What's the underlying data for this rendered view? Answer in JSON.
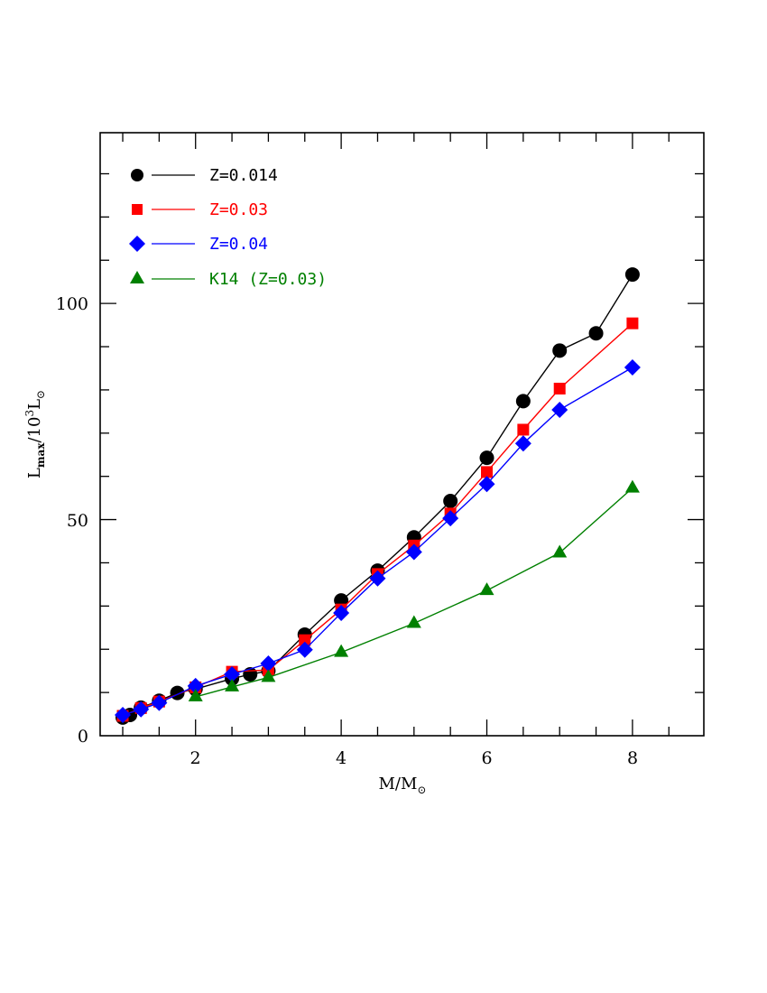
{
  "chart_data": {
    "type": "line",
    "title": "",
    "xlabel": "M/M⊙",
    "ylabel": "L_max/10^3 L⊙",
    "xlabel_parts": {
      "main": "M/M",
      "sub": "⊙"
    },
    "ylabel_parts": {
      "main": "L",
      "sub": "max",
      "mid": "/10",
      "sup": "3",
      "main2": "L",
      "sub2": "⊙"
    },
    "xlim": [
      0.69,
      8.98
    ],
    "ylim": [
      0,
      139.5
    ],
    "xticks_major": [
      2,
      4,
      6,
      8
    ],
    "xticks_minor_step": 0.5,
    "yticks_major": [
      0,
      50,
      100
    ],
    "yticks_minor_step": 10,
    "grid": false,
    "legend_position": "upper left",
    "series": [
      {
        "name": "Z=0.014",
        "color": "#000000",
        "marker": "circle",
        "x": [
          1.0,
          1.1,
          1.25,
          1.5,
          1.75,
          2.0,
          2.5,
          2.75,
          3.0,
          3.5,
          4.0,
          4.5,
          5.0,
          5.5,
          6.0,
          6.5,
          7.0,
          7.5,
          8.0
        ],
        "y": [
          4.2,
          4.8,
          6.5,
          8.1,
          9.9,
          10.8,
          13.2,
          14.2,
          15.0,
          23.4,
          31.3,
          38.2,
          45.9,
          54.3,
          64.3,
          77.4,
          89.1,
          93.1,
          106.7
        ]
      },
      {
        "name": "Z=0.03",
        "color": "#ff0000",
        "marker": "square",
        "x": [
          1.0,
          1.25,
          1.5,
          2.0,
          2.5,
          3.0,
          3.5,
          4.0,
          4.5,
          5.0,
          5.5,
          6.0,
          6.5,
          7.0,
          8.0
        ],
        "y": [
          4.6,
          6.4,
          7.9,
          11.2,
          14.8,
          15.2,
          22.1,
          29.2,
          37.4,
          44.0,
          51.4,
          61.0,
          70.8,
          80.3,
          95.4
        ]
      },
      {
        "name": "Z=0.04",
        "color": "#0000ff",
        "marker": "diamond",
        "x": [
          1.0,
          1.25,
          1.5,
          2.0,
          2.5,
          3.0,
          3.5,
          4.0,
          4.5,
          5.0,
          5.5,
          6.0,
          6.5,
          7.0,
          8.0
        ],
        "y": [
          4.8,
          6.1,
          7.6,
          11.5,
          14.2,
          16.7,
          19.9,
          28.4,
          36.4,
          42.5,
          50.3,
          58.2,
          67.6,
          75.4,
          85.2
        ]
      },
      {
        "name": "K14 (Z=0.03)",
        "color": "#008000",
        "marker": "triangle",
        "x": [
          2.0,
          2.5,
          3.0,
          4.0,
          5.0,
          6.0,
          7.0,
          8.0
        ],
        "y": [
          9.0,
          11.3,
          13.5,
          19.3,
          26.0,
          33.6,
          42.3,
          57.3
        ]
      }
    ]
  },
  "axis": {
    "x_tick_labels": [
      "2",
      "4",
      "6",
      "8"
    ],
    "y_tick_labels": [
      "0",
      "50",
      "100"
    ]
  },
  "legend": {
    "items": [
      {
        "label": "Z=0.014",
        "color": "#000000",
        "marker": "circle"
      },
      {
        "label": "Z=0.03",
        "color": "#ff0000",
        "marker": "square"
      },
      {
        "label": "Z=0.04",
        "color": "#0000ff",
        "marker": "diamond"
      },
      {
        "label": "K14 (Z=0.03)",
        "color": "#008000",
        "marker": "triangle"
      }
    ]
  }
}
